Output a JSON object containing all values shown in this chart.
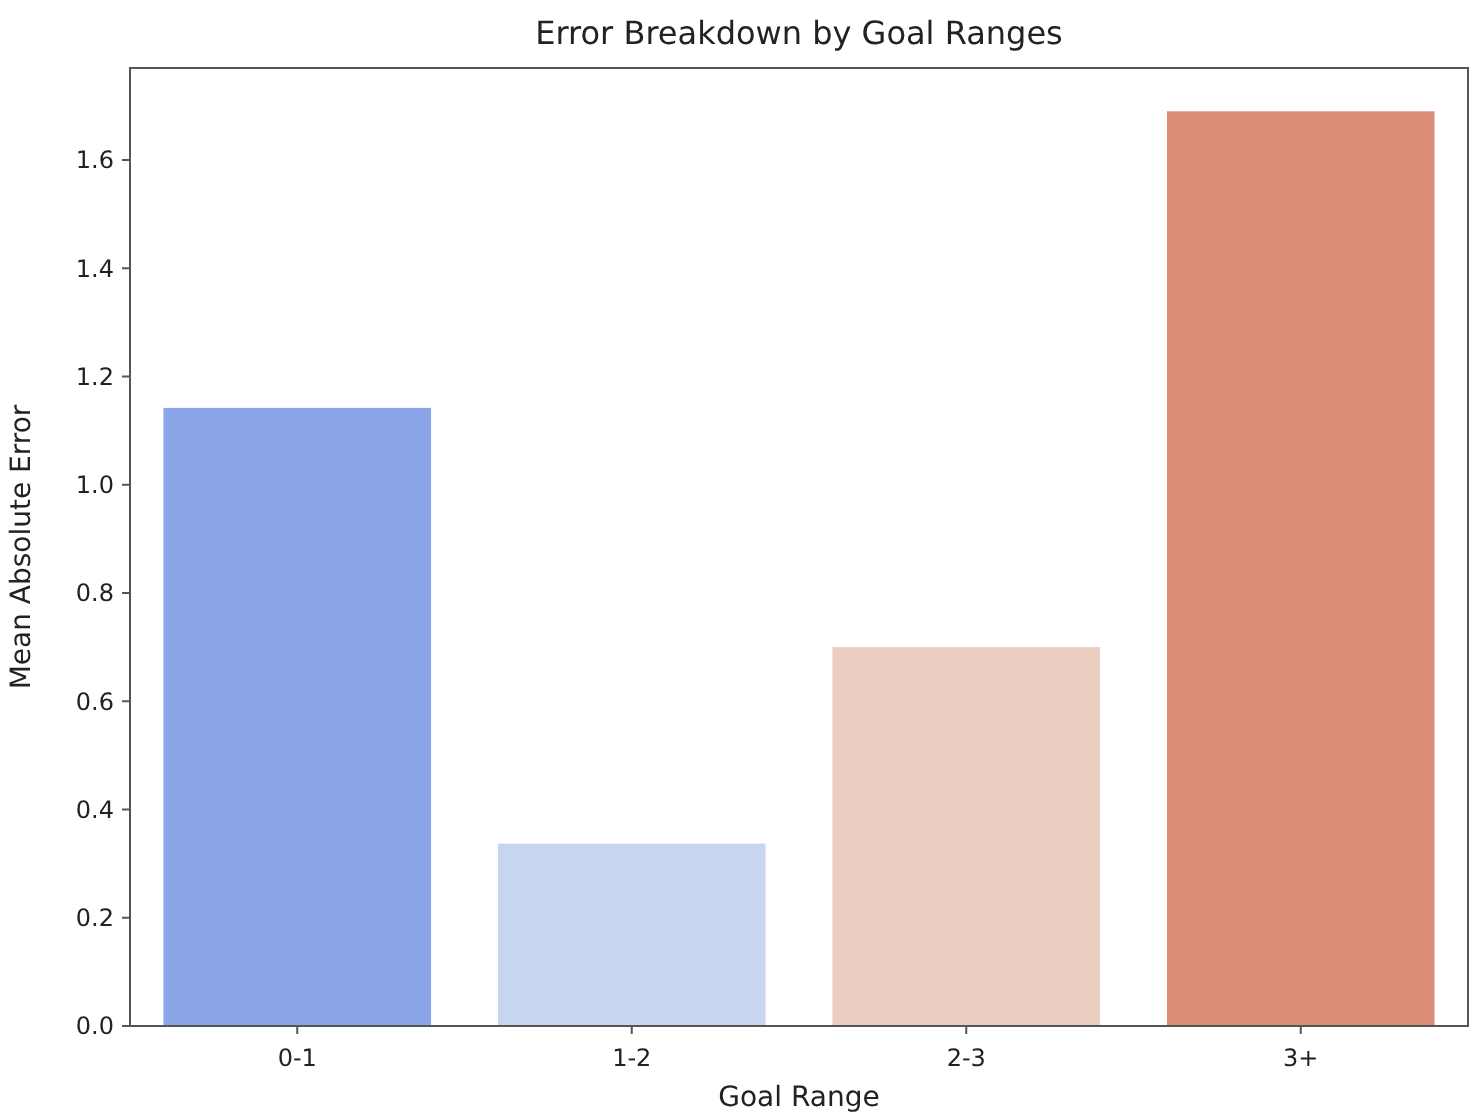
{
  "chart_data": {
    "type": "bar",
    "title": "Error Breakdown by Goal Ranges",
    "xlabel": "Goal Range",
    "ylabel": "Mean Absolute Error",
    "categories": [
      "0-1",
      "1-2",
      "2-3",
      "3+"
    ],
    "values": [
      1.142,
      0.337,
      0.7,
      1.69
    ],
    "colors": [
      "#8aa5e8",
      "#c7d5ef",
      "#e9cdbf",
      "#db8c76"
    ],
    "ylim": [
      0,
      1.77
    ],
    "yticks": [
      {
        "value": 0,
        "label": "0.0"
      },
      {
        "value": 0.2,
        "label": "0.2"
      },
      {
        "value": 0.4,
        "label": "0.4"
      },
      {
        "value": 0.6,
        "label": "0.6"
      },
      {
        "value": 0.8,
        "label": "0.8"
      },
      {
        "value": 1,
        "label": "1.0"
      },
      {
        "value": 1.2,
        "label": "1.2"
      },
      {
        "value": 1.4,
        "label": "1.4"
      },
      {
        "value": 1.6,
        "label": "1.6"
      }
    ],
    "grid": false
  }
}
